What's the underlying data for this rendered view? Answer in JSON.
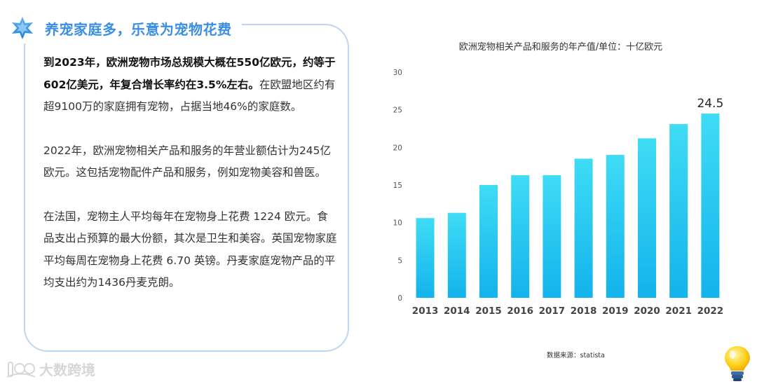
{
  "header": {
    "title": "养宠家庭多，乐意为宠物花费",
    "icon": "star-icon",
    "accent_color": "#3a8ee6"
  },
  "paragraphs": {
    "p1_bold": "到2023年，欧洲宠物市场总规模大概在550亿欧元，约等于602亿美元，年复合增长率约在3.5%左右。",
    "p1_rest": "在欧盟地区约有超9100万的家庭拥有宠物，占据当地46%的家庭数。",
    "p2": "2022年，欧洲宠物相关产品和服务的年营业额估计为245亿欧元。这包括宠物配件产品和服务，例如宠物美容和兽医。",
    "p3": "在法国，宠物主人平均每年在宠物身上花费 1224 欧元。食品支出占预算的最大份额，其次是卫生和美容。英国宠物家庭平均每周在宠物身上花费 6.70 英镑。丹麦家庭宠物产品的平均支出约为1436丹麦克朗。"
  },
  "source": "数据来源：statista",
  "watermark": {
    "text": "大数跨境",
    "icon": "brand-logo-icon"
  },
  "decor": {
    "bulb_icon": "lightbulb-icon"
  },
  "chart_data": {
    "type": "bar",
    "title": "欧洲宠物相关产品和服务的年产值/单位：十亿欧元",
    "categories": [
      "2013",
      "2014",
      "2015",
      "2016",
      "2017",
      "2018",
      "2019",
      "2020",
      "2021",
      "2022"
    ],
    "values": [
      10.6,
      11.3,
      15.0,
      16.3,
      16.3,
      18.5,
      19.0,
      21.2,
      23.1,
      24.5
    ],
    "labeled_value": "24.5",
    "labeled_index": 9,
    "ylim": [
      0,
      30
    ],
    "yticks": [
      0,
      5,
      10,
      15,
      20,
      25,
      30
    ],
    "grid": false,
    "legend": "none",
    "bar_color_top": "#3fdcf5",
    "bar_color_bottom": "#13b3ec"
  }
}
